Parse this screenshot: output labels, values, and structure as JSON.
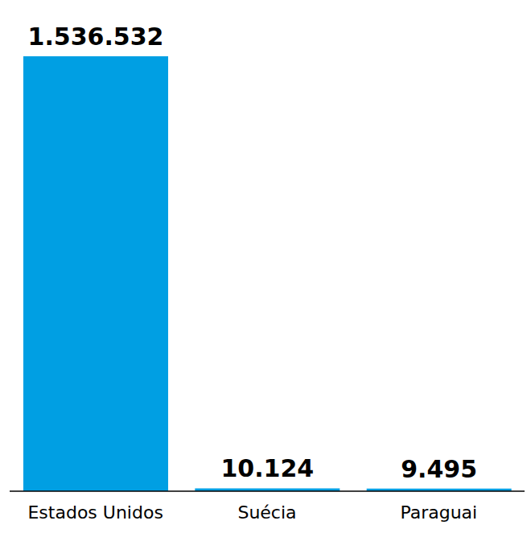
{
  "chart_data": {
    "type": "bar",
    "categories": [
      "Estados Unidos",
      "Suécia",
      "Paraguai"
    ],
    "values": [
      1536532,
      10124,
      9495
    ],
    "value_labels": [
      "1.536.532",
      "10.124",
      "9.495"
    ],
    "color": "#009fe3",
    "data_labels": true,
    "tick_labels": "x"
  }
}
